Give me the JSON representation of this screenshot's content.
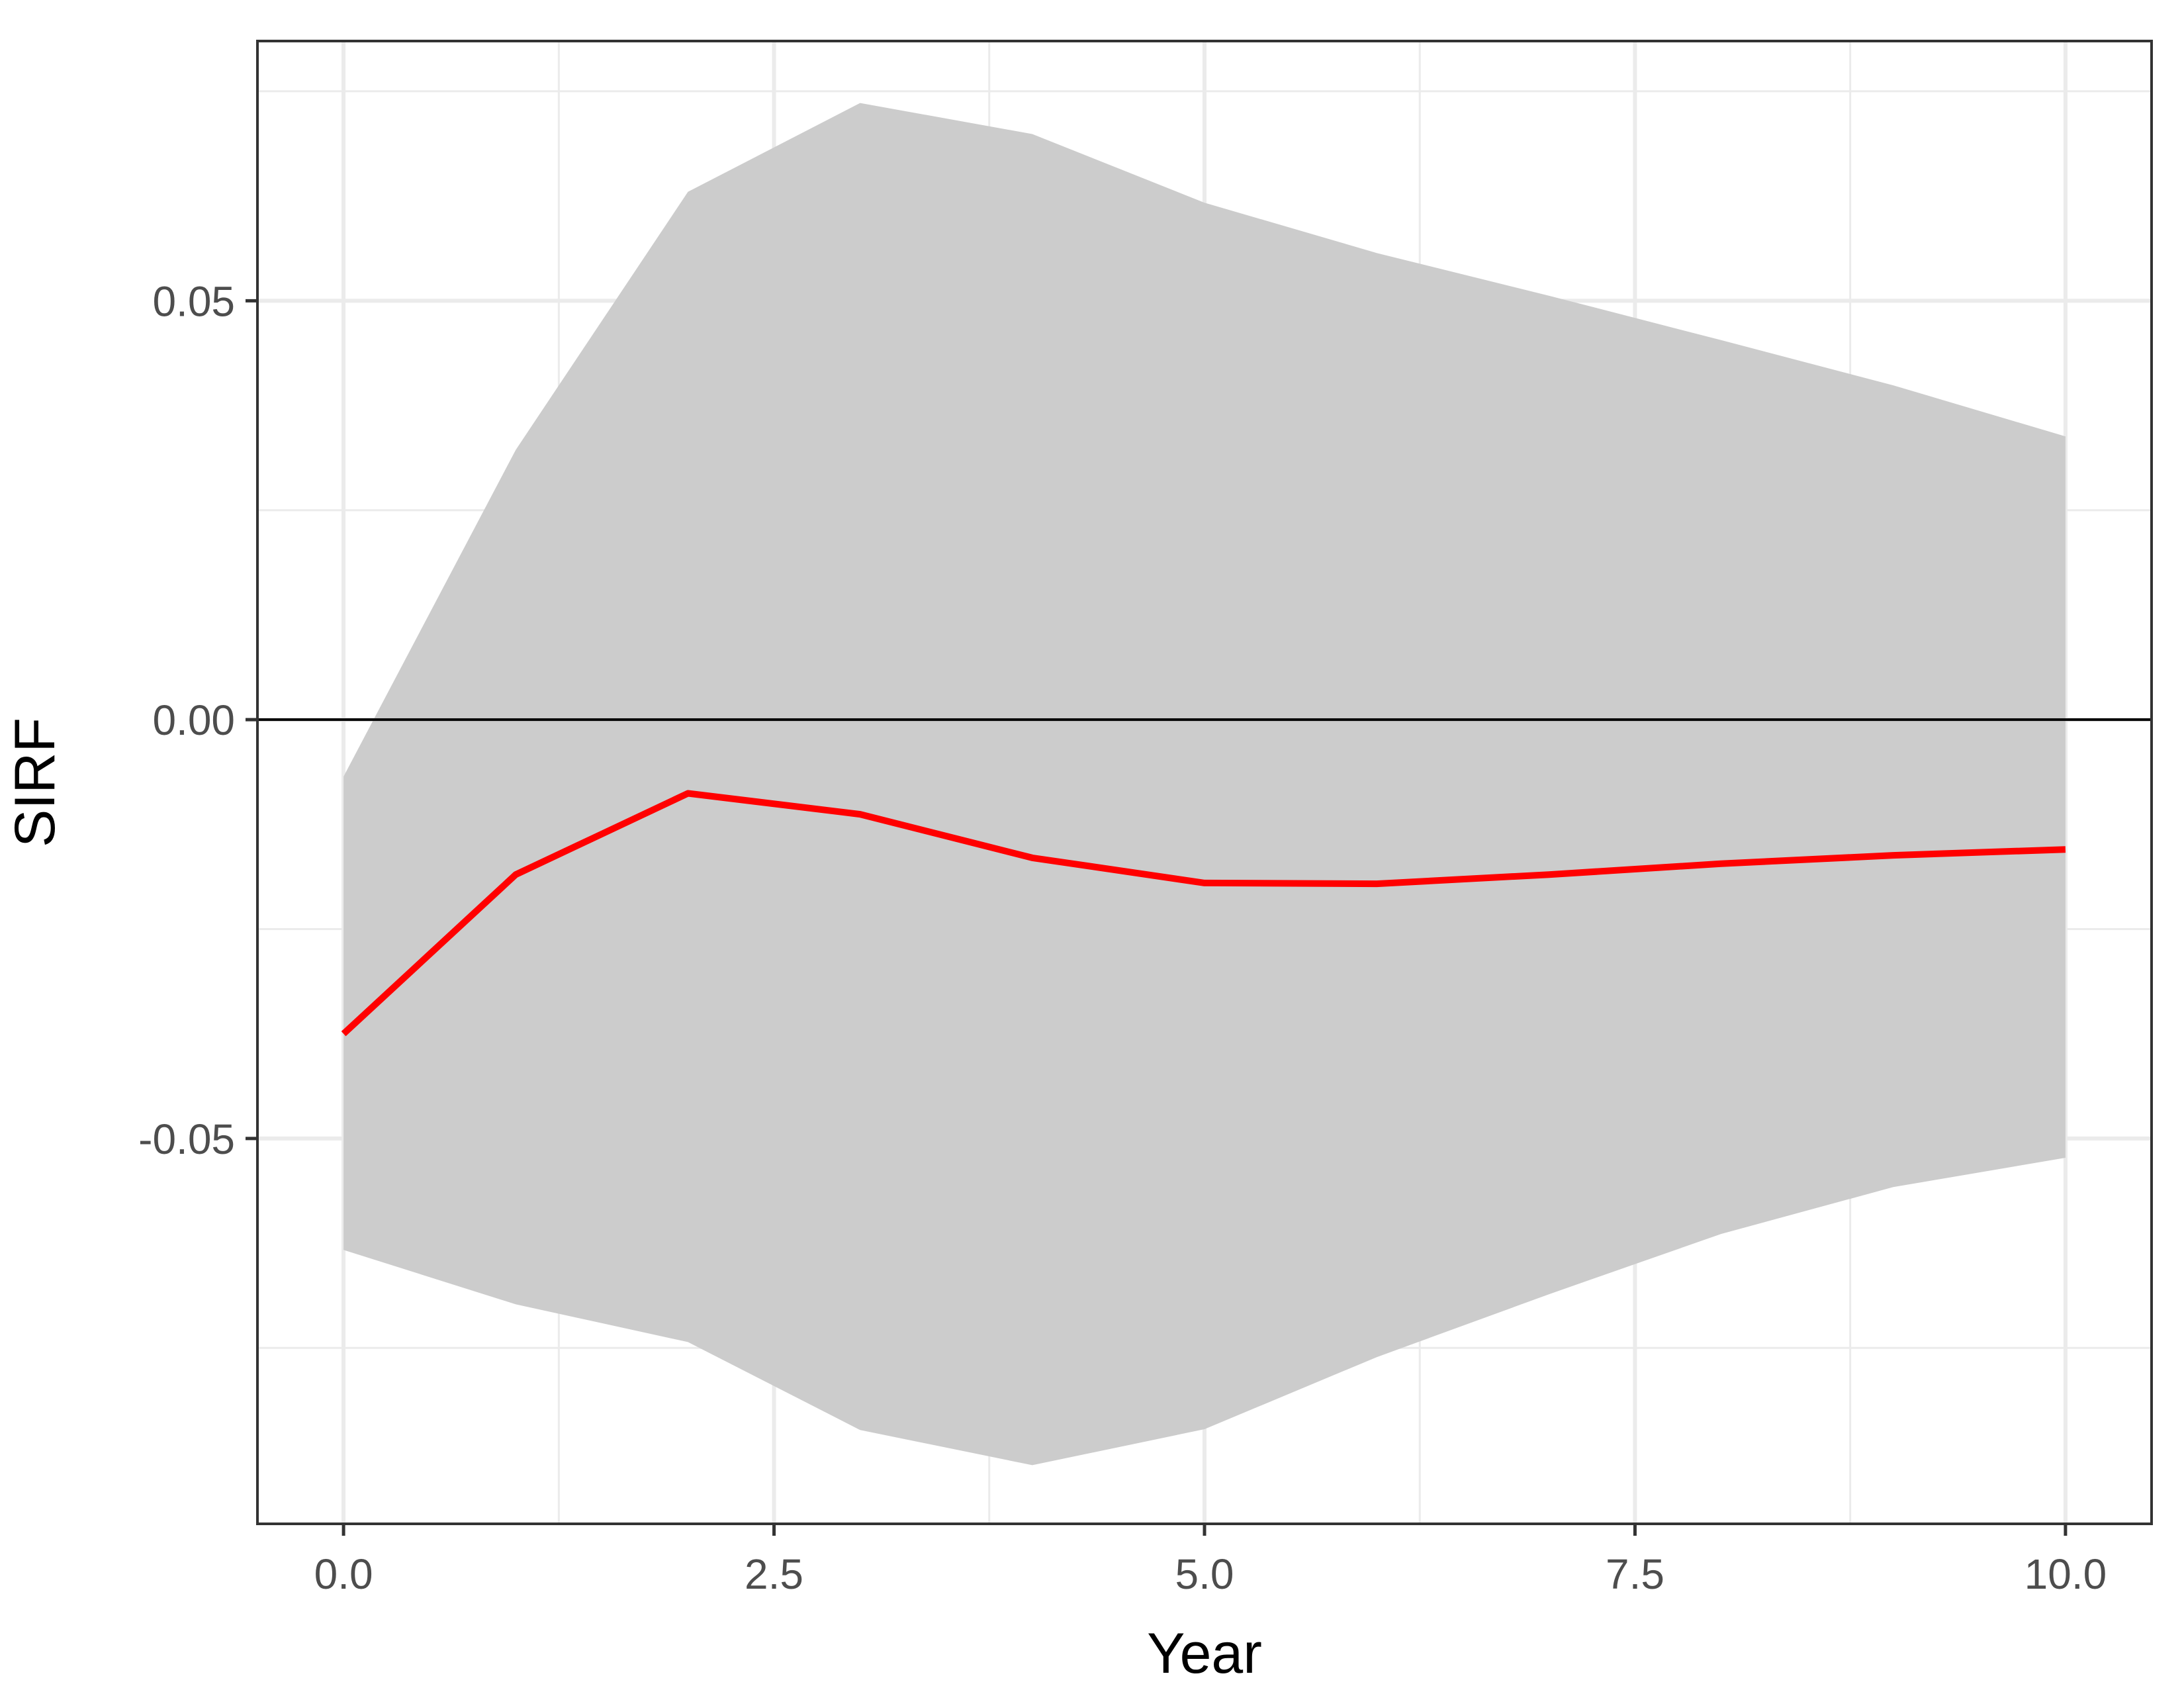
{
  "chart_data": {
    "type": "line",
    "title": "",
    "xlabel": "Year",
    "ylabel": "SIRF",
    "xlim": [
      -0.5,
      10.5
    ],
    "ylim": [
      -0.096,
      0.081
    ],
    "x_ticks": [
      0,
      2.5,
      5,
      7.5,
      10
    ],
    "x_tick_labels": [
      "0.0",
      "2.5",
      "5.0",
      "7.5",
      "10.0"
    ],
    "x_minor_ticks": [
      1.25,
      3.75,
      6.25,
      8.75
    ],
    "y_ticks": [
      -0.05,
      0,
      0.05
    ],
    "y_tick_labels": [
      "-0.05",
      "0.00",
      "0.05"
    ],
    "y_minor_ticks": [
      -0.075,
      -0.025,
      0.025,
      0.075
    ],
    "grid": true,
    "reference_line": 0,
    "x": [
      0,
      1,
      2,
      3,
      4,
      5,
      6,
      7,
      8,
      9,
      10
    ],
    "series": [
      {
        "values": [
          -0.0375,
          -0.0185,
          -0.0088,
          -0.0113,
          -0.0165,
          -0.0195,
          -0.0196,
          -0.0185,
          -0.0172,
          -0.0162,
          -0.0155
        ],
        "color": "#ff0000"
      }
    ],
    "band": {
      "lower": [
        -0.0633,
        -0.0698,
        -0.0743,
        -0.0848,
        -0.089,
        -0.0847,
        -0.0761,
        -0.0686,
        -0.0614,
        -0.0558,
        -0.0523
      ],
      "upper": [
        -0.0068,
        0.0322,
        0.063,
        0.0736,
        0.0699,
        0.0617,
        0.0557,
        0.0506,
        0.0453,
        0.0399,
        0.0338
      ],
      "color": "#cccccc"
    }
  }
}
